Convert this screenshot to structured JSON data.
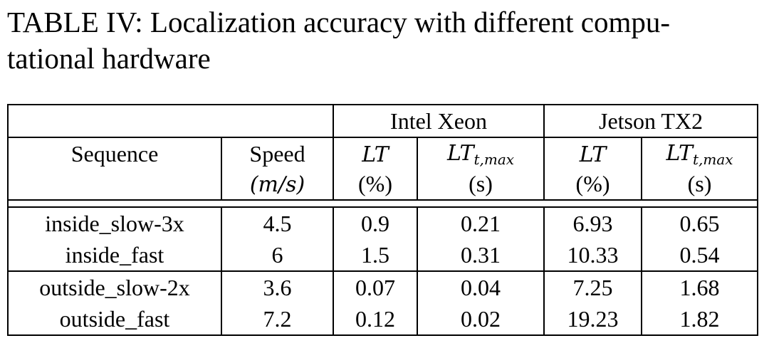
{
  "caption": {
    "line1": "TABLE IV: Localization accuracy with different compu-",
    "line2": "tational hardware"
  },
  "table": {
    "groups": {
      "g1": "Intel Xeon",
      "g2": "Jetson TX2"
    },
    "headers": {
      "sequence": "Sequence",
      "speed": "Speed",
      "speed_unit": "(m/s)",
      "lt": "LT",
      "lt_unit": "(%)",
      "ltmax_base": "LT",
      "ltmax_sub": "t,max",
      "ltmax_unit": "(s)"
    },
    "rows": [
      {
        "sequence": "inside_slow-3x",
        "speed": "4.5",
        "xeon_lt": "0.9",
        "xeon_ltmax": "0.21",
        "tx2_lt": "6.93",
        "tx2_ltmax": "0.65"
      },
      {
        "sequence": "inside_fast",
        "speed": "6",
        "xeon_lt": "1.5",
        "xeon_ltmax": "0.31",
        "tx2_lt": "10.33",
        "tx2_ltmax": "0.54"
      },
      {
        "sequence": "outside_slow-2x",
        "speed": "3.6",
        "xeon_lt": "0.07",
        "xeon_ltmax": "0.04",
        "tx2_lt": "7.25",
        "tx2_ltmax": "1.68"
      },
      {
        "sequence": "outside_fast",
        "speed": "7.2",
        "xeon_lt": "0.12",
        "xeon_ltmax": "0.02",
        "tx2_lt": "19.23",
        "tx2_ltmax": "1.82"
      }
    ]
  }
}
